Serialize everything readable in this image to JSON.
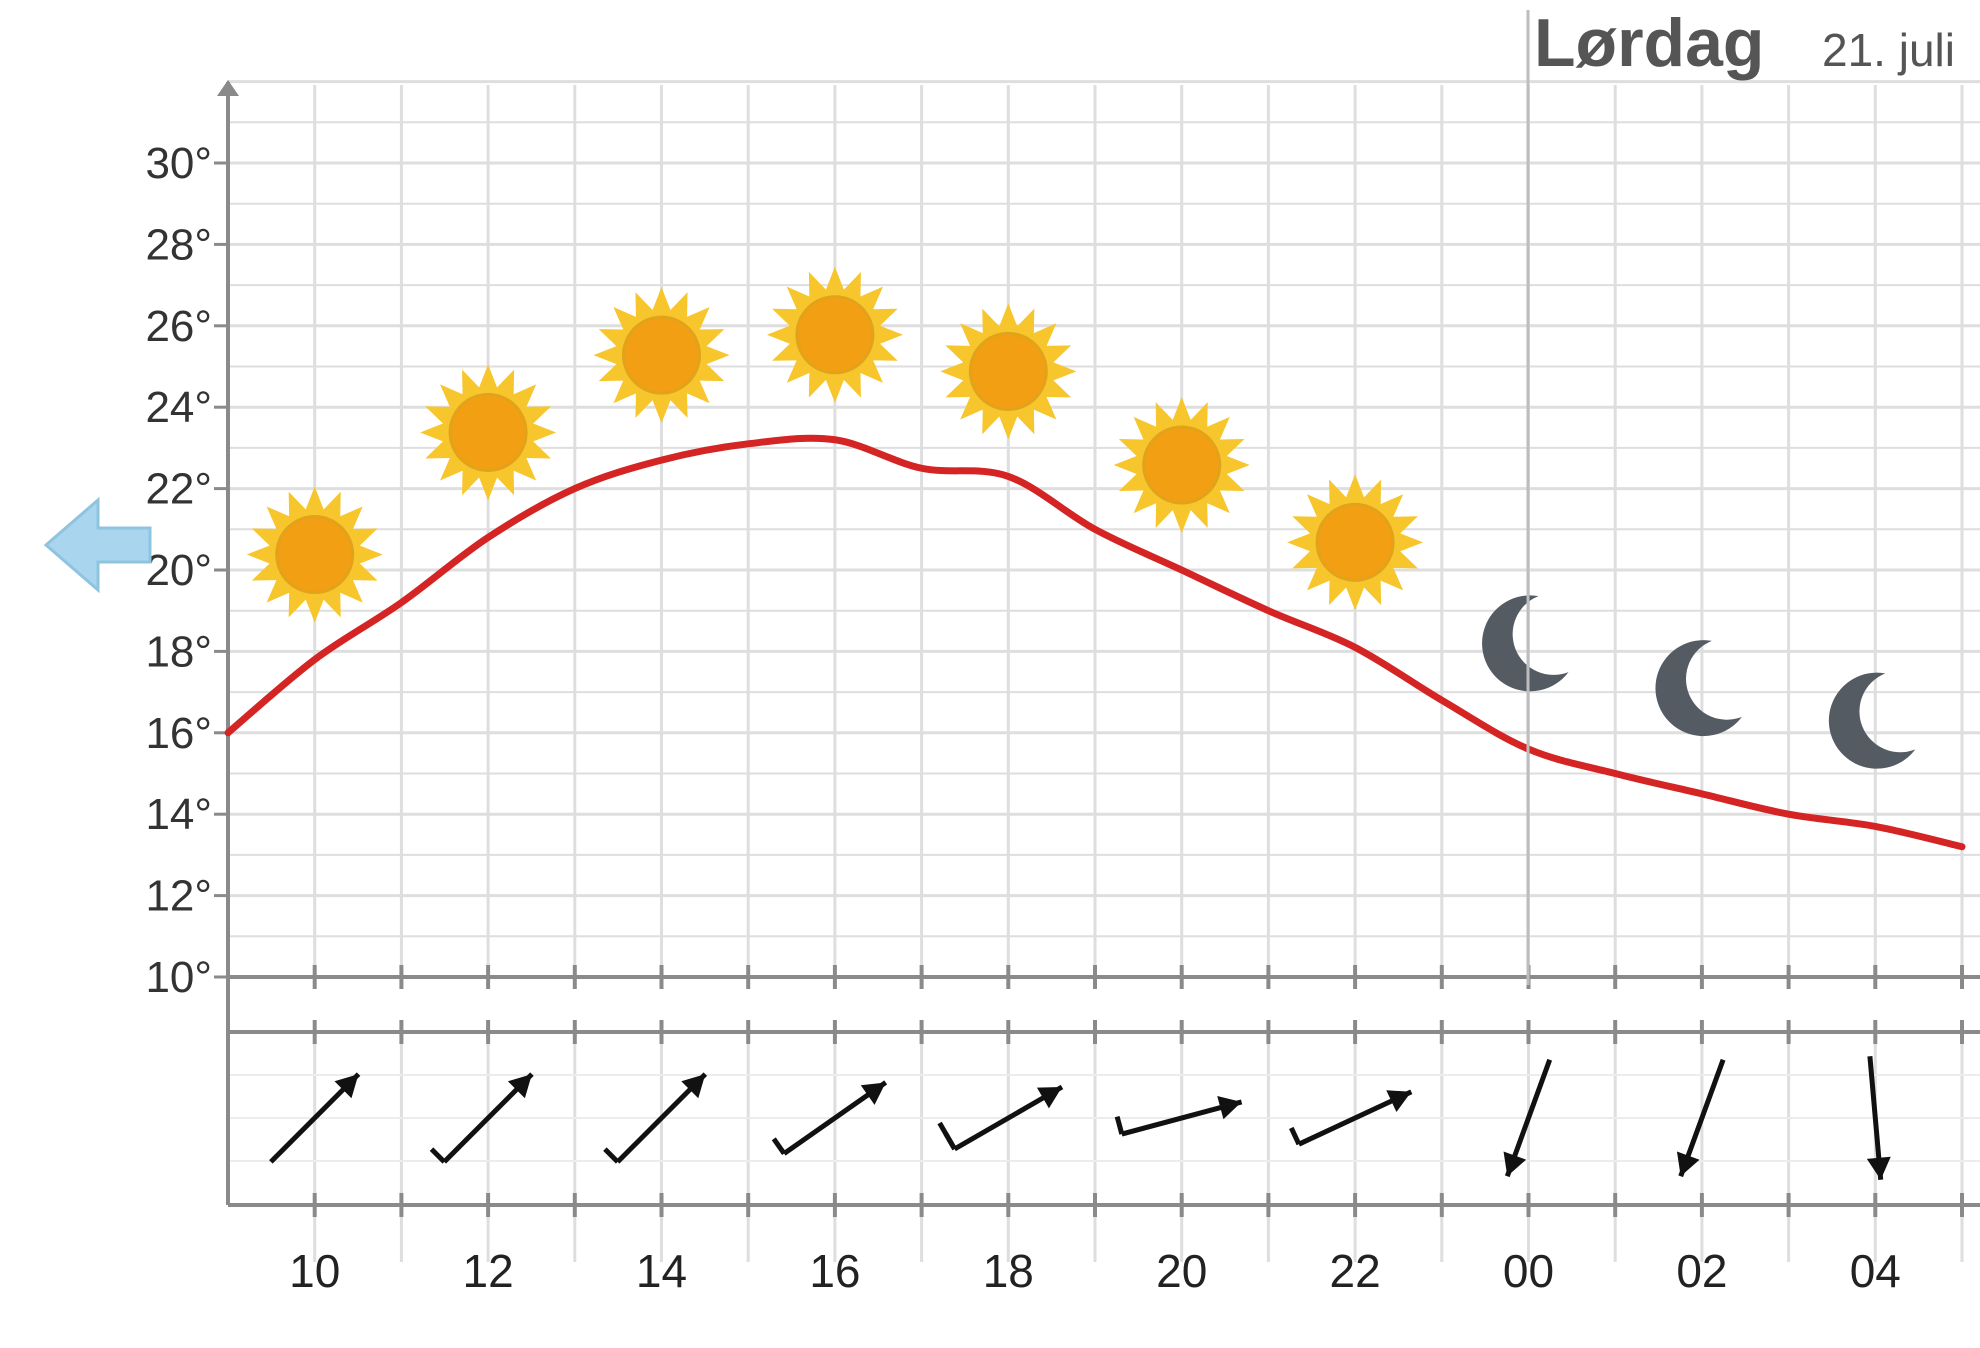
{
  "header": {
    "day_title": "Lørdag",
    "day_date": "21. juli"
  },
  "nav": {
    "prev_icon": "arrow-left-icon"
  },
  "colors": {
    "temperature_line": "#d42424",
    "grid": "#dedede",
    "axis": "#8a8a8a",
    "sun": "#f29f13",
    "sun_rays": "#f7c52c",
    "moon": "#555b63",
    "nav_arrow": "#a9d6ee"
  },
  "chart_data": {
    "type": "line",
    "title": "",
    "xlabel": "",
    "ylabel": "",
    "ylim": [
      10,
      32
    ],
    "yticks": [
      "10°",
      "12°",
      "14°",
      "16°",
      "18°",
      "20°",
      "22°",
      "24°",
      "26°",
      "28°",
      "30°"
    ],
    "hour_labels": [
      "10",
      "12",
      "14",
      "16",
      "18",
      "20",
      "22",
      "00",
      "02",
      "04"
    ],
    "series": [
      {
        "x": [
          9,
          10,
          11,
          12,
          13,
          14,
          15,
          16,
          17,
          18,
          19,
          20,
          21,
          22,
          23,
          24,
          25,
          26,
          27,
          28,
          29
        ],
        "values": [
          16.0,
          17.8,
          19.2,
          20.8,
          22.0,
          22.7,
          23.1,
          23.2,
          22.5,
          22.3,
          21.0,
          20.0,
          19.0,
          18.1,
          16.8,
          15.6,
          15.0,
          14.5,
          14.0,
          13.7,
          13.2
        ]
      }
    ],
    "symbols": [
      {
        "hour": 10,
        "icon": "sun-icon"
      },
      {
        "hour": 12,
        "icon": "sun-icon"
      },
      {
        "hour": 14,
        "icon": "sun-icon"
      },
      {
        "hour": 16,
        "icon": "sun-icon"
      },
      {
        "hour": 18,
        "icon": "sun-icon"
      },
      {
        "hour": 20,
        "icon": "sun-icon"
      },
      {
        "hour": 22,
        "icon": "sun-icon"
      },
      {
        "hour": 24,
        "icon": "moon-icon"
      },
      {
        "hour": 26,
        "icon": "moon-icon"
      },
      {
        "hour": 28,
        "icon": "moon-icon"
      }
    ],
    "wind": [
      {
        "hour": 10,
        "direction_deg": 225,
        "barbs": 0
      },
      {
        "hour": 12,
        "direction_deg": 225,
        "barbs": 1
      },
      {
        "hour": 14,
        "direction_deg": 225,
        "barbs": 1
      },
      {
        "hour": 16,
        "direction_deg": 235,
        "barbs": 1
      },
      {
        "hour": 18,
        "direction_deg": 240,
        "barbs": 2
      },
      {
        "hour": 20,
        "direction_deg": 255,
        "barbs": 1
      },
      {
        "hour": 22,
        "direction_deg": 245,
        "barbs": 1
      },
      {
        "hour": 24,
        "direction_deg": 20,
        "barbs": 0
      },
      {
        "hour": 26,
        "direction_deg": 20,
        "barbs": 0
      },
      {
        "hour": 28,
        "direction_deg": 355,
        "barbs": 0
      }
    ]
  }
}
